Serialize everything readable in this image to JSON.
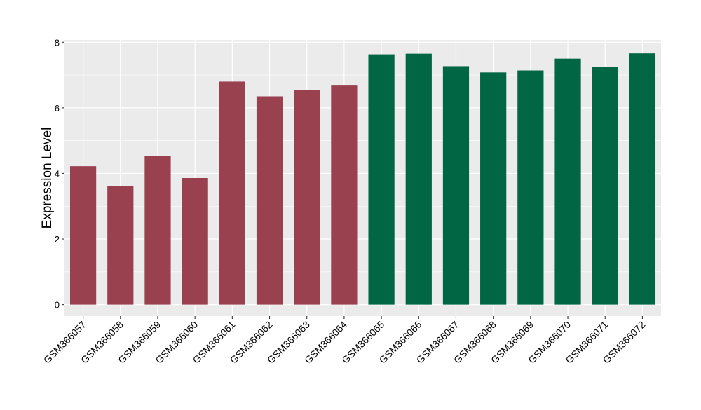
{
  "chart_data": {
    "type": "bar",
    "title": "",
    "xlabel": "",
    "ylabel": "Expression Level",
    "ylim": [
      -0.35,
      8.07
    ],
    "yticks": [
      0,
      2,
      4,
      6,
      8
    ],
    "grid": true,
    "categories": [
      "GSM366057",
      "GSM366058",
      "GSM366059",
      "GSM366060",
      "GSM366061",
      "GSM366062",
      "GSM366063",
      "GSM366064",
      "GSM366065",
      "GSM366066",
      "GSM366067",
      "GSM366068",
      "GSM366069",
      "GSM366070",
      "GSM366071",
      "GSM366072"
    ],
    "values": [
      4.22,
      3.62,
      4.54,
      3.86,
      6.8,
      6.35,
      6.55,
      6.7,
      7.63,
      7.65,
      7.27,
      7.08,
      7.14,
      7.5,
      7.25,
      7.66
    ],
    "bar_colors": [
      "#9a4150",
      "#9a4150",
      "#9a4150",
      "#9a4150",
      "#9a4150",
      "#9a4150",
      "#9a4150",
      "#9a4150",
      "#006643",
      "#006643",
      "#006643",
      "#006643",
      "#006643",
      "#006643",
      "#006643",
      "#006643"
    ],
    "colors": {
      "panel": "#ebebeb",
      "grid": "#ffffff",
      "text": "#000000",
      "tick": "#333333"
    }
  }
}
